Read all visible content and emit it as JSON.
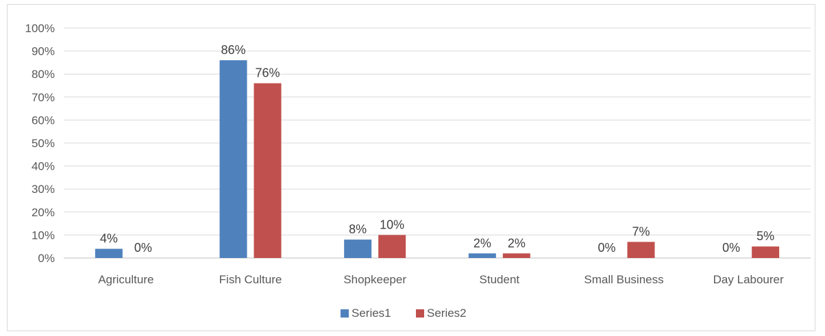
{
  "chart_data": {
    "type": "bar",
    "title": "",
    "xlabel": "",
    "ylabel": "",
    "categories": [
      "Agriculture",
      "Fish Culture",
      "Shopkeeper",
      "Student",
      "Small Business",
      "Day Labourer"
    ],
    "series": [
      {
        "name": "Series1",
        "color": "#4f81bd",
        "values": [
          4,
          86,
          8,
          2,
          0,
          0
        ],
        "labels": [
          "4%",
          "86%",
          "8%",
          "2%",
          "0%",
          "0%"
        ]
      },
      {
        "name": "Series2",
        "color": "#c0504d",
        "values": [
          0,
          76,
          10,
          2,
          7,
          5
        ],
        "labels": [
          "0%",
          "76%",
          "10%",
          "2%",
          "7%",
          "5%"
        ]
      }
    ],
    "ylim": [
      0,
      100
    ],
    "yticks": [
      0,
      10,
      20,
      30,
      40,
      50,
      60,
      70,
      80,
      90,
      100
    ],
    "ytick_labels": [
      "0%",
      "10%",
      "20%",
      "30%",
      "40%",
      "50%",
      "60%",
      "70%",
      "80%",
      "90%",
      "100%"
    ],
    "grid": true,
    "legend_position": "bottom"
  }
}
